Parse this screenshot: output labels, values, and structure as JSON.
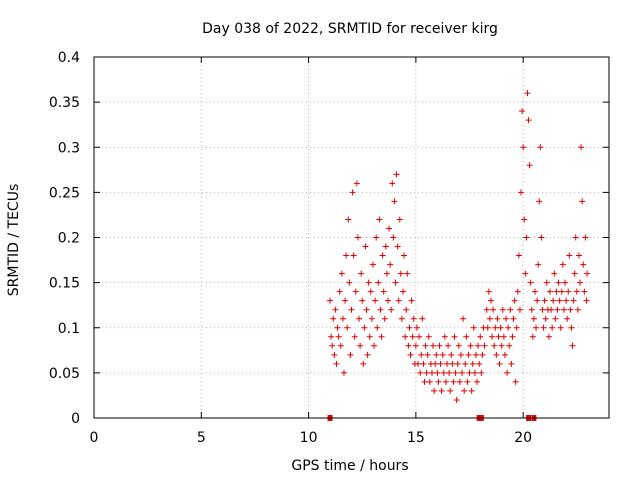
{
  "chart_data": {
    "type": "scatter",
    "title": "Day 038 of 2022, SRMTID for receiver kirg",
    "xlabel": "GPS time / hours",
    "ylabel": "SRMTID / TECUs",
    "xlim": [
      0,
      24
    ],
    "ylim": [
      0,
      0.4
    ],
    "xticks": [
      0,
      5,
      10,
      15,
      20
    ],
    "yticks": [
      0,
      0.05,
      0.1,
      0.15,
      0.2,
      0.25,
      0.3,
      0.35,
      0.4
    ],
    "xtick_labels": [
      "0",
      "5",
      "10",
      "15",
      "20"
    ],
    "ytick_labels": [
      "0",
      "0.05",
      "0.1",
      "0.15",
      "0.2",
      "0.25",
      "0.3",
      "0.35",
      "0.4"
    ],
    "grid": true,
    "marker": "+",
    "color": "#e00000",
    "series": [
      {
        "name": "SRMTID",
        "points": [
          [
            11.0,
            0.13
          ],
          [
            11.05,
            0.09
          ],
          [
            11.1,
            0.08
          ],
          [
            11.15,
            0.11
          ],
          [
            11.2,
            0.07
          ],
          [
            11.25,
            0.12
          ],
          [
            11.3,
            0.06
          ],
          [
            11.35,
            0.1
          ],
          [
            11.4,
            0.09
          ],
          [
            11.45,
            0.14
          ],
          [
            11.5,
            0.08
          ],
          [
            11.55,
            0.16
          ],
          [
            11.6,
            0.11
          ],
          [
            11.65,
            0.05
          ],
          [
            11.7,
            0.13
          ],
          [
            11.75,
            0.18
          ],
          [
            11.8,
            0.1
          ],
          [
            11.85,
            0.22
          ],
          [
            11.9,
            0.15
          ],
          [
            11.95,
            0.07
          ],
          [
            12.0,
            0.12
          ],
          [
            12.05,
            0.25
          ],
          [
            12.1,
            0.18
          ],
          [
            12.15,
            0.09
          ],
          [
            12.2,
            0.14
          ],
          [
            12.25,
            0.26
          ],
          [
            12.3,
            0.2
          ],
          [
            12.35,
            0.11
          ],
          [
            12.4,
            0.08
          ],
          [
            12.45,
            0.16
          ],
          [
            12.5,
            0.13
          ],
          [
            12.55,
            0.06
          ],
          [
            12.6,
            0.1
          ],
          [
            12.65,
            0.19
          ],
          [
            12.7,
            0.12
          ],
          [
            12.75,
            0.07
          ],
          [
            12.8,
            0.15
          ],
          [
            12.85,
            0.09
          ],
          [
            12.9,
            0.14
          ],
          [
            12.95,
            0.11
          ],
          [
            13.0,
            0.17
          ],
          [
            13.05,
            0.08
          ],
          [
            13.1,
            0.13
          ],
          [
            13.15,
            0.2
          ],
          [
            13.2,
            0.1
          ],
          [
            13.25,
            0.15
          ],
          [
            13.3,
            0.22
          ],
          [
            13.35,
            0.12
          ],
          [
            13.4,
            0.09
          ],
          [
            13.45,
            0.18
          ],
          [
            13.5,
            0.14
          ],
          [
            13.55,
            0.11
          ],
          [
            13.6,
            0.19
          ],
          [
            13.65,
            0.16
          ],
          [
            13.7,
            0.13
          ],
          [
            13.75,
            0.21
          ],
          [
            13.8,
            0.17
          ],
          [
            13.85,
            0.12
          ],
          [
            13.9,
            0.26
          ],
          [
            13.95,
            0.2
          ],
          [
            14.0,
            0.24
          ],
          [
            14.05,
            0.15
          ],
          [
            14.1,
            0.27
          ],
          [
            14.15,
            0.19
          ],
          [
            14.2,
            0.13
          ],
          [
            14.25,
            0.22
          ],
          [
            14.3,
            0.16
          ],
          [
            14.35,
            0.11
          ],
          [
            14.4,
            0.14
          ],
          [
            14.45,
            0.18
          ],
          [
            14.5,
            0.09
          ],
          [
            14.55,
            0.12
          ],
          [
            14.6,
            0.16
          ],
          [
            14.65,
            0.08
          ],
          [
            14.7,
            0.1
          ],
          [
            14.75,
            0.07
          ],
          [
            14.8,
            0.13
          ],
          [
            14.85,
            0.09
          ],
          [
            14.9,
            0.11
          ],
          [
            14.95,
            0.06
          ],
          [
            15.0,
            0.08
          ],
          [
            15.05,
            0.1
          ],
          [
            15.1,
            0.06
          ],
          [
            15.15,
            0.09
          ],
          [
            15.2,
            0.05
          ],
          [
            15.25,
            0.07
          ],
          [
            15.3,
            0.11
          ],
          [
            15.35,
            0.06
          ],
          [
            15.4,
            0.04
          ],
          [
            15.45,
            0.08
          ],
          [
            15.5,
            0.05
          ],
          [
            15.55,
            0.07
          ],
          [
            15.6,
            0.09
          ],
          [
            15.65,
            0.04
          ],
          [
            15.7,
            0.06
          ],
          [
            15.75,
            0.05
          ],
          [
            15.8,
            0.08
          ],
          [
            15.85,
            0.03
          ],
          [
            15.9,
            0.06
          ],
          [
            15.95,
            0.07
          ],
          [
            16.0,
            0.05
          ],
          [
            16.05,
            0.04
          ],
          [
            16.1,
            0.08
          ],
          [
            16.15,
            0.06
          ],
          [
            16.2,
            0.03
          ],
          [
            16.25,
            0.07
          ],
          [
            16.3,
            0.05
          ],
          [
            16.35,
            0.09
          ],
          [
            16.4,
            0.04
          ],
          [
            16.45,
            0.06
          ],
          [
            16.5,
            0.08
          ],
          [
            16.55,
            0.05
          ],
          [
            16.6,
            0.03
          ],
          [
            16.65,
            0.07
          ],
          [
            16.7,
            0.06
          ],
          [
            16.75,
            0.04
          ],
          [
            16.8,
            0.09
          ],
          [
            16.85,
            0.05
          ],
          [
            16.9,
            0.02
          ],
          [
            16.95,
            0.06
          ],
          [
            17.0,
            0.08
          ],
          [
            17.05,
            0.04
          ],
          [
            17.1,
            0.07
          ],
          [
            17.15,
            0.05
          ],
          [
            17.2,
            0.11
          ],
          [
            17.25,
            0.03
          ],
          [
            17.3,
            0.06
          ],
          [
            17.35,
            0.09
          ],
          [
            17.4,
            0.04
          ],
          [
            17.45,
            0.07
          ],
          [
            17.5,
            0.05
          ],
          [
            17.55,
            0.08
          ],
          [
            17.6,
            0.03
          ],
          [
            17.65,
            0.06
          ],
          [
            17.7,
            0.1
          ],
          [
            17.75,
            0.05
          ],
          [
            17.8,
            0.07
          ],
          [
            17.85,
            0.04
          ],
          [
            17.9,
            0.08
          ],
          [
            17.95,
            0.06
          ],
          [
            18.0,
            0.09
          ],
          [
            18.05,
            0.05
          ],
          [
            18.1,
            0.07
          ],
          [
            18.15,
            0.1
          ],
          [
            18.2,
            0.08
          ],
          [
            18.3,
            0.12
          ],
          [
            18.35,
            0.1
          ],
          [
            18.4,
            0.14
          ],
          [
            18.45,
            0.11
          ],
          [
            18.5,
            0.13
          ],
          [
            18.55,
            0.09
          ],
          [
            18.6,
            0.12
          ],
          [
            18.65,
            0.08
          ],
          [
            18.7,
            0.1
          ],
          [
            18.75,
            0.07
          ],
          [
            18.8,
            0.11
          ],
          [
            18.85,
            0.09
          ],
          [
            18.9,
            0.06
          ],
          [
            18.95,
            0.1
          ],
          [
            19.0,
            0.08
          ],
          [
            19.05,
            0.12
          ],
          [
            19.1,
            0.09
          ],
          [
            19.15,
            0.07
          ],
          [
            19.2,
            0.11
          ],
          [
            19.25,
            0.05
          ],
          [
            19.3,
            0.1
          ],
          [
            19.35,
            0.08
          ],
          [
            19.4,
            0.12
          ],
          [
            19.45,
            0.06
          ],
          [
            19.5,
            0.09
          ],
          [
            19.55,
            0.11
          ],
          [
            19.6,
            0.13
          ],
          [
            19.65,
            0.04
          ],
          [
            19.7,
            0.1
          ],
          [
            19.75,
            0.14
          ],
          [
            19.8,
            0.18
          ],
          [
            19.85,
            0.12
          ],
          [
            19.9,
            0.25
          ],
          [
            19.95,
            0.34
          ],
          [
            20.0,
            0.3
          ],
          [
            20.05,
            0.22
          ],
          [
            20.1,
            0.16
          ],
          [
            20.15,
            0.2
          ],
          [
            20.2,
            0.36
          ],
          [
            20.25,
            0.33
          ],
          [
            20.3,
            0.28
          ],
          [
            20.35,
            0.15
          ],
          [
            20.4,
            0.12
          ],
          [
            20.45,
            0.09
          ],
          [
            20.5,
            0.11
          ],
          [
            20.55,
            0.14
          ],
          [
            20.6,
            0.1
          ],
          [
            20.65,
            0.13
          ],
          [
            20.7,
            0.17
          ],
          [
            20.75,
            0.24
          ],
          [
            20.8,
            0.3
          ],
          [
            20.85,
            0.2
          ],
          [
            20.9,
            0.12
          ],
          [
            20.95,
            0.1
          ],
          [
            21.0,
            0.13
          ],
          [
            21.05,
            0.11
          ],
          [
            21.1,
            0.15
          ],
          [
            21.15,
            0.12
          ],
          [
            21.2,
            0.09
          ],
          [
            21.25,
            0.14
          ],
          [
            21.3,
            0.12
          ],
          [
            21.35,
            0.1
          ],
          [
            21.4,
            0.13
          ],
          [
            21.45,
            0.16
          ],
          [
            21.5,
            0.11
          ],
          [
            21.55,
            0.14
          ],
          [
            21.6,
            0.12
          ],
          [
            21.65,
            0.15
          ],
          [
            21.7,
            0.13
          ],
          [
            21.75,
            0.1
          ],
          [
            21.8,
            0.14
          ],
          [
            21.85,
            0.17
          ],
          [
            21.9,
            0.12
          ],
          [
            21.95,
            0.15
          ],
          [
            22.0,
            0.13
          ],
          [
            22.05,
            0.11
          ],
          [
            22.1,
            0.14
          ],
          [
            22.15,
            0.18
          ],
          [
            22.2,
            0.12
          ],
          [
            22.25,
            0.1
          ],
          [
            22.3,
            0.08
          ],
          [
            22.35,
            0.13
          ],
          [
            22.4,
            0.16
          ],
          [
            22.45,
            0.2
          ],
          [
            22.5,
            0.14
          ],
          [
            22.55,
            0.12
          ],
          [
            22.6,
            0.18
          ],
          [
            22.65,
            0.15
          ],
          [
            22.7,
            0.3
          ],
          [
            22.75,
            0.24
          ],
          [
            22.8,
            0.17
          ],
          [
            22.85,
            0.14
          ],
          [
            22.9,
            0.2
          ],
          [
            22.95,
            0.13
          ],
          [
            22.98,
            0.16
          ]
        ]
      }
    ],
    "gap_markers_x": [
      11.0,
      17.95,
      18.05,
      20.25,
      20.5
    ]
  }
}
